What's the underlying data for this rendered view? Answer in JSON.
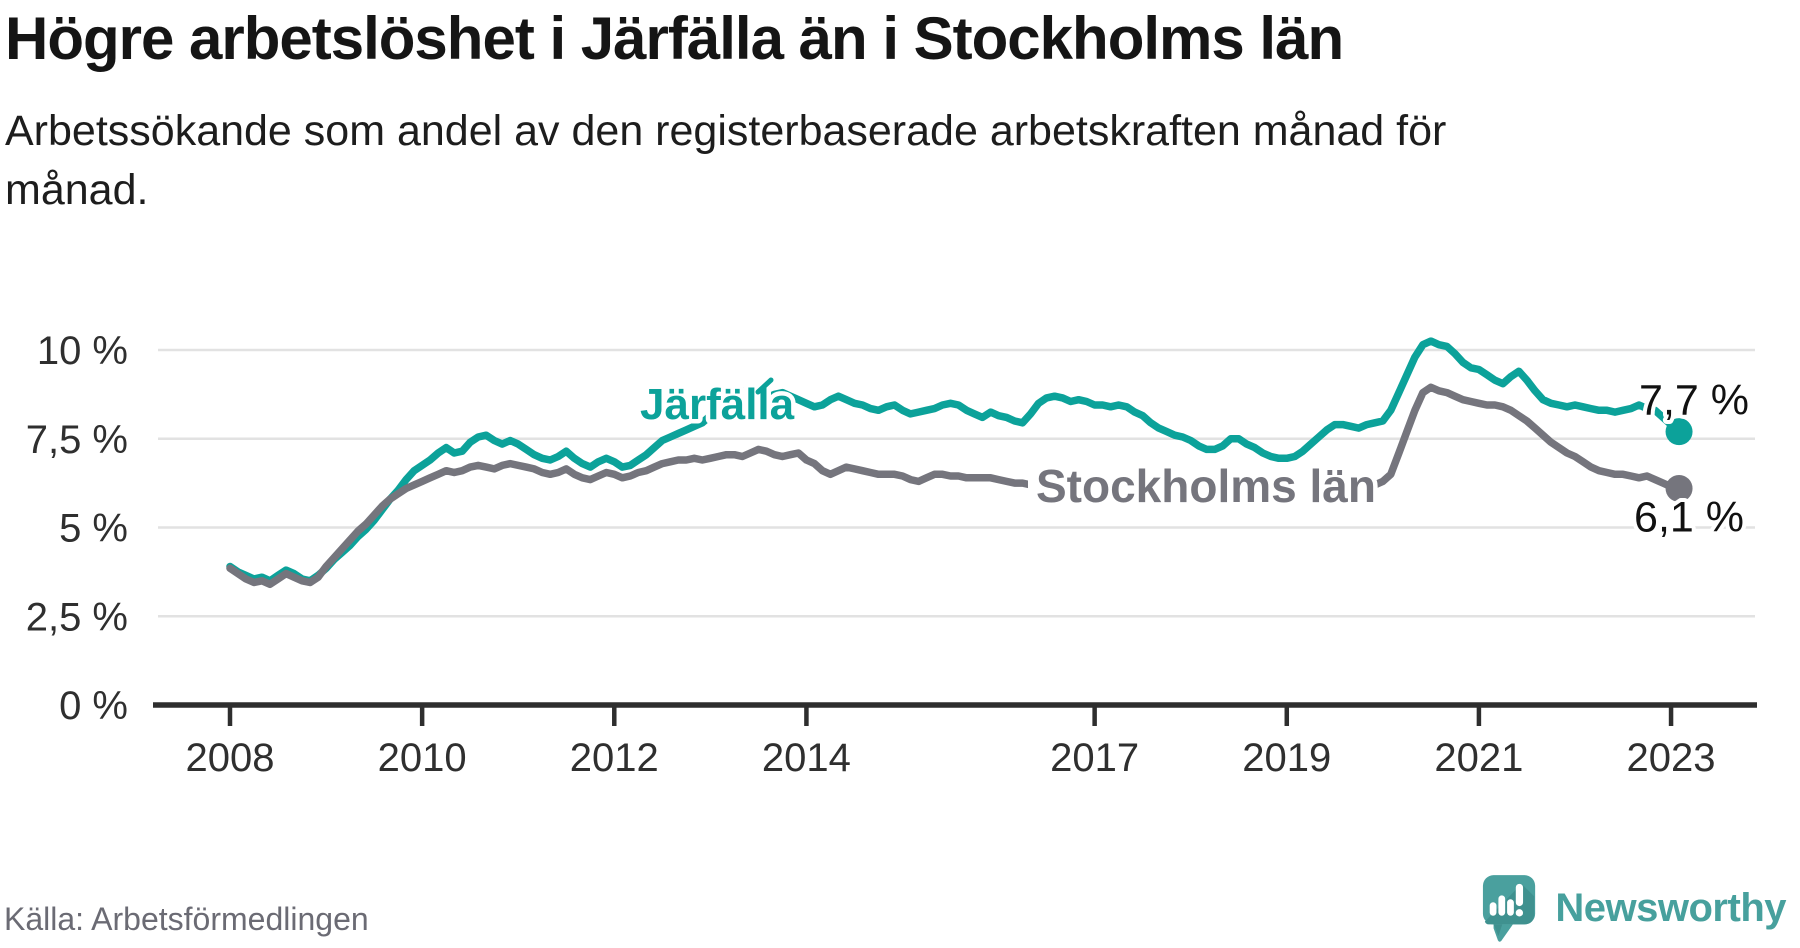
{
  "header": {
    "title": "Högre arbetslöshet i Järfälla än i Stockholms län",
    "subtitle": "Arbetssökande som andel av den registerbaserade arbetskraften månad för månad."
  },
  "footer": {
    "source": "Källa: Arbetsförmedlingen",
    "logo_text": "Newsworthy"
  },
  "chart_data": {
    "type": "line",
    "title": "Högre arbetslöshet i Järfälla än i Stockholms län",
    "subtitle": "Arbetssökande som andel av den registerbaserade arbetskraften månad för månad.",
    "unit": "%",
    "x_start_year": 2008,
    "x_step_months": 1,
    "x_end": "2023-02",
    "x_ticks": [
      2008,
      2010,
      2012,
      2014,
      2017,
      2019,
      2021,
      2023
    ],
    "y_ticks": [
      {
        "value": 0,
        "label": "0 %"
      },
      {
        "value": 2.5,
        "label": "2,5 %"
      },
      {
        "value": 5,
        "label": "5 %"
      },
      {
        "value": 7.5,
        "label": "7,5 %"
      },
      {
        "value": 10,
        "label": "10 %"
      }
    ],
    "ylim": [
      0,
      10.8
    ],
    "grid": true,
    "colors": {
      "jarfalla": "#0ca29a",
      "stockholms_lan": "#75757d",
      "axis": "#2e2e2e",
      "gridline": "#e2e2e2"
    },
    "series": [
      {
        "name": "Järfälla",
        "color": "#0ca29a",
        "end_label": "7,7 %",
        "end_value": 7.7,
        "values": [
          3.9,
          3.75,
          3.65,
          3.55,
          3.6,
          3.5,
          3.65,
          3.8,
          3.7,
          3.55,
          3.5,
          3.65,
          3.85,
          4.1,
          4.3,
          4.5,
          4.75,
          4.95,
          5.2,
          5.5,
          5.8,
          6.05,
          6.35,
          6.6,
          6.75,
          6.9,
          7.1,
          7.25,
          7.1,
          7.15,
          7.4,
          7.55,
          7.6,
          7.45,
          7.35,
          7.45,
          7.35,
          7.2,
          7.05,
          6.95,
          6.9,
          7.0,
          7.15,
          6.95,
          6.8,
          6.7,
          6.85,
          6.95,
          6.85,
          6.7,
          6.75,
          6.9,
          7.05,
          7.25,
          7.45,
          7.55,
          7.65,
          7.75,
          7.85,
          7.95,
          8.15,
          8.35,
          8.55,
          8.75,
          8.85,
          8.8,
          8.7,
          8.65,
          8.75,
          8.8,
          8.7,
          8.6,
          8.5,
          8.4,
          8.45,
          8.6,
          8.7,
          8.6,
          8.5,
          8.45,
          8.35,
          8.3,
          8.4,
          8.45,
          8.3,
          8.2,
          8.25,
          8.3,
          8.35,
          8.45,
          8.5,
          8.45,
          8.3,
          8.2,
          8.1,
          8.25,
          8.15,
          8.1,
          8.0,
          7.95,
          8.2,
          8.5,
          8.65,
          8.7,
          8.65,
          8.55,
          8.6,
          8.55,
          8.45,
          8.45,
          8.4,
          8.45,
          8.4,
          8.25,
          8.15,
          7.95,
          7.8,
          7.7,
          7.6,
          7.55,
          7.45,
          7.3,
          7.2,
          7.2,
          7.3,
          7.5,
          7.5,
          7.35,
          7.25,
          7.1,
          7.0,
          6.95,
          6.95,
          7.0,
          7.15,
          7.35,
          7.55,
          7.75,
          7.9,
          7.9,
          7.85,
          7.8,
          7.9,
          7.95,
          8.0,
          8.3,
          8.8,
          9.3,
          9.8,
          10.15,
          10.25,
          10.15,
          10.1,
          9.9,
          9.65,
          9.5,
          9.45,
          9.3,
          9.15,
          9.05,
          9.25,
          9.4,
          9.15,
          8.85,
          8.6,
          8.5,
          8.45,
          8.4,
          8.45,
          8.4,
          8.35,
          8.3,
          8.3,
          8.25,
          8.3,
          8.35,
          8.45,
          8.35,
          8.3,
          8.1,
          7.9,
          7.7
        ]
      },
      {
        "name": "Stockholms län",
        "color": "#75757d",
        "end_label": "6,1 %",
        "end_value": 6.1,
        "values": [
          3.85,
          3.7,
          3.55,
          3.45,
          3.5,
          3.4,
          3.55,
          3.7,
          3.6,
          3.5,
          3.45,
          3.6,
          3.9,
          4.15,
          4.4,
          4.65,
          4.9,
          5.1,
          5.35,
          5.6,
          5.8,
          5.95,
          6.1,
          6.2,
          6.3,
          6.4,
          6.5,
          6.6,
          6.55,
          6.6,
          6.7,
          6.75,
          6.7,
          6.65,
          6.75,
          6.8,
          6.75,
          6.7,
          6.65,
          6.55,
          6.5,
          6.55,
          6.65,
          6.5,
          6.4,
          6.35,
          6.45,
          6.55,
          6.5,
          6.4,
          6.45,
          6.55,
          6.6,
          6.7,
          6.8,
          6.85,
          6.9,
          6.9,
          6.95,
          6.9,
          6.95,
          7.0,
          7.05,
          7.05,
          7.0,
          7.1,
          7.2,
          7.15,
          7.05,
          7.0,
          7.05,
          7.1,
          6.9,
          6.8,
          6.6,
          6.5,
          6.6,
          6.7,
          6.65,
          6.6,
          6.55,
          6.5,
          6.5,
          6.5,
          6.45,
          6.35,
          6.3,
          6.4,
          6.5,
          6.5,
          6.45,
          6.45,
          6.4,
          6.4,
          6.4,
          6.4,
          6.35,
          6.3,
          6.25,
          6.25,
          6.2,
          6.2,
          6.25,
          6.2,
          6.15,
          6.1,
          6.1,
          6.1,
          6.05,
          6.0,
          6.0,
          6.05,
          6.05,
          6.0,
          6.05,
          6.0,
          5.95,
          5.95,
          6.0,
          6.05,
          6.0,
          5.95,
          5.9,
          5.9,
          5.95,
          6.05,
          6.05,
          6.0,
          5.95,
          5.9,
          5.95,
          6.0,
          6.0,
          6.05,
          6.1,
          6.1,
          6.15,
          6.2,
          6.25,
          6.2,
          6.15,
          6.1,
          6.15,
          6.2,
          6.3,
          6.5,
          7.1,
          7.7,
          8.3,
          8.8,
          8.95,
          8.85,
          8.8,
          8.7,
          8.6,
          8.55,
          8.5,
          8.45,
          8.45,
          8.4,
          8.3,
          8.15,
          8.0,
          7.8,
          7.6,
          7.4,
          7.25,
          7.1,
          7.0,
          6.85,
          6.7,
          6.6,
          6.55,
          6.5,
          6.5,
          6.45,
          6.4,
          6.45,
          6.35,
          6.25,
          6.15,
          6.1
        ]
      }
    ]
  }
}
